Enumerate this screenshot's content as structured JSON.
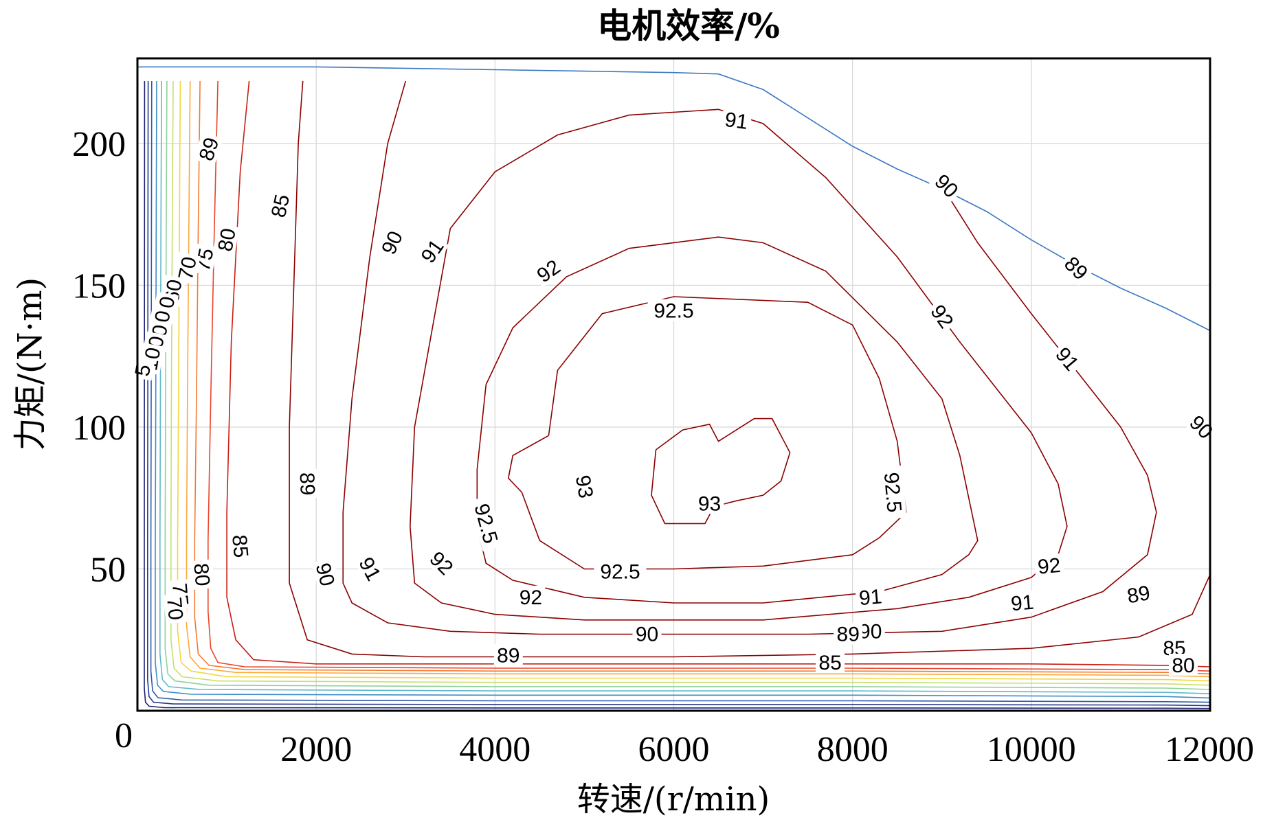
{
  "chart_data": {
    "type": "contour",
    "title": "电机效率/%",
    "xlabel": "转速/(r/min)",
    "ylabel": "力矩/(N·m)",
    "xlim": [
      0,
      12000
    ],
    "ylim": [
      0,
      230
    ],
    "x_ticks": [
      0,
      2000,
      4000,
      6000,
      8000,
      10000,
      12000
    ],
    "x_tick_labels": [
      "0",
      "2000",
      "4000",
      "6000",
      "8000",
      "10000",
      "12000"
    ],
    "y_ticks": [
      50,
      100,
      150,
      200
    ],
    "y_tick_labels": [
      "50",
      "100",
      "150",
      "200"
    ],
    "grid": true,
    "legend": "none",
    "colors": {
      "peak_torque_curve": "#3a78c2",
      "high_efficiency": "#8b0000",
      "level_85": "#c81e14",
      "level_80": "#e8442a",
      "level_75": "#f47a30",
      "level_70": "#fca83a",
      "level_60": "#f2d640",
      "level_50": "#c5e06a",
      "level_40": "#8fd09a",
      "level_30": "#5fb8c8",
      "level_20": "#3d8cc8",
      "level_10": "#2f5aa8",
      "level_5": "#243a8a",
      "level_0": "#1a2070"
    },
    "peak_torque_curve": {
      "x": [
        0,
        2000,
        4000,
        5000,
        6000,
        6500,
        7000,
        7500,
        8000,
        8500,
        9000,
        9500,
        10000,
        10500,
        11000,
        11500,
        12000
      ],
      "y": [
        227,
        227,
        226,
        225.5,
        225,
        224.5,
        219,
        209,
        199,
        191,
        184,
        176,
        166,
        157,
        149,
        142,
        134
      ]
    },
    "contour_levels": [
      {
        "level": "93",
        "x": [
          5800,
          6100,
          6400,
          6500,
          6900,
          7100,
          7300,
          7200,
          7000,
          6700,
          6450,
          6350,
          6150,
          5900,
          5750,
          5800
        ],
        "y": [
          92,
          99,
          101,
          95,
          103,
          103,
          91,
          81,
          76,
          74,
          72,
          66,
          66,
          66,
          76,
          92
        ]
      },
      {
        "level": "92.5",
        "x": [
          4600,
          4700,
          5200,
          6000,
          6750,
          7500,
          8000,
          8300,
          8500,
          8600,
          8300,
          8000,
          7000,
          6000,
          5000,
          4500,
          4300,
          4150,
          4200,
          4600
        ],
        "y": [
          97,
          120,
          140,
          146,
          145,
          144,
          136,
          117,
          95,
          70,
          61,
          55,
          51,
          50,
          50,
          60,
          77,
          82,
          90,
          97
        ]
      },
      {
        "level": "92",
        "x": [
          3900,
          4200,
          4800,
          5500,
          6500,
          7000,
          7700,
          8500,
          9000,
          9200,
          9400,
          9300,
          9000,
          8300,
          7000,
          6000,
          5000,
          4200,
          3900,
          3800,
          3800,
          3900
        ],
        "y": [
          115,
          135,
          153,
          163,
          167,
          165,
          155,
          130,
          110,
          90,
          60,
          55,
          48,
          42,
          38,
          38,
          40,
          46,
          52,
          65,
          85,
          115
        ]
      },
      {
        "level": "91",
        "x": [
          3500,
          4000,
          4700,
          5500,
          6500,
          7000,
          7700,
          8500,
          9200,
          10000,
          10300,
          10400,
          10300,
          10000,
          9300,
          8500,
          7000,
          6000,
          5000,
          4000,
          3400,
          3100,
          3050,
          3100,
          3500
        ],
        "y": [
          170,
          190,
          203,
          210,
          212,
          207,
          188,
          160,
          130,
          98,
          80,
          65,
          55,
          47,
          40,
          36,
          32,
          32,
          32,
          34,
          38,
          45,
          65,
          100,
          170
        ]
      },
      {
        "level": "90",
        "x": [
          3000,
          2800,
          2600,
          2400,
          2300,
          2300,
          2400,
          2800,
          3500,
          4500,
          6000,
          7500,
          9000,
          10000,
          10800,
          11300,
          11400,
          11300,
          11000,
          10500,
          10000,
          9400,
          9000
        ],
        "y": [
          222,
          200,
          160,
          110,
          70,
          45,
          38,
          31,
          28,
          27,
          27,
          27,
          28,
          33,
          42,
          55,
          70,
          83,
          100,
          120,
          140,
          165,
          185
        ]
      },
      {
        "level": "89",
        "x": [
          1850,
          1800,
          1750,
          1700,
          1700,
          1900,
          2400,
          3200,
          4500,
          6000,
          8000,
          10000,
          11200,
          11800,
          12000
        ],
        "y": [
          222,
          200,
          150,
          100,
          45,
          25,
          20,
          19,
          19,
          19,
          20,
          22,
          26,
          34,
          48
        ]
      },
      {
        "level": "85",
        "x": [
          1250,
          1150,
          1050,
          1000,
          1000,
          1100,
          1300,
          2000,
          4000,
          6000,
          8000,
          10000,
          11500,
          12000
        ],
        "y": [
          222,
          190,
          130,
          70,
          40,
          25,
          18,
          16.5,
          16.5,
          16.5,
          16.5,
          16.5,
          16,
          15.5
        ]
      },
      {
        "level": "80",
        "x": [
          900,
          860,
          820,
          790,
          790,
          820,
          900,
          1200,
          4000,
          8000,
          11500,
          12000
        ],
        "y": [
          222,
          170,
          110,
          60,
          35,
          22,
          17,
          15.5,
          15,
          15,
          14.5,
          14
        ]
      },
      {
        "level": "75",
        "x": [
          700,
          680,
          660,
          640,
          640,
          680,
          800,
          1200,
          4000,
          8000,
          11500,
          12000
        ],
        "y": [
          222,
          170,
          110,
          60,
          33,
          20,
          16,
          14.5,
          14,
          14,
          13.5,
          13
        ]
      },
      {
        "level": "70",
        "x": [
          590,
          575,
          560,
          550,
          550,
          590,
          700,
          1100,
          4000,
          8000,
          11500,
          12000
        ],
        "y": [
          222,
          170,
          110,
          60,
          30,
          19,
          15,
          13.5,
          13,
          13,
          12.5,
          12
        ]
      },
      {
        "level": "60",
        "x": [
          480,
          470,
          460,
          450,
          450,
          490,
          600,
          1000,
          4000,
          8000,
          11500,
          12000
        ],
        "y": [
          222,
          170,
          110,
          60,
          28,
          17,
          14,
          12,
          11.5,
          11.5,
          11,
          10.5
        ]
      },
      {
        "level": "50",
        "x": [
          400,
          390,
          380,
          375,
          375,
          410,
          500,
          900,
          4000,
          8000,
          11500,
          12000
        ],
        "y": [
          222,
          170,
          110,
          60,
          25,
          15,
          12,
          10.5,
          10,
          10,
          9.5,
          9
        ]
      },
      {
        "level": "40",
        "x": [
          330,
          322,
          315,
          310,
          310,
          340,
          420,
          800,
          4000,
          8000,
          11500,
          12000
        ],
        "y": [
          222,
          170,
          110,
          60,
          22,
          13,
          10.5,
          9,
          8.5,
          8.5,
          8,
          7.5
        ]
      },
      {
        "level": "30",
        "x": [
          270,
          263,
          257,
          252,
          252,
          280,
          350,
          700,
          4000,
          8000,
          11500,
          12000
        ],
        "y": [
          222,
          170,
          110,
          60,
          20,
          11,
          8.5,
          7.5,
          7,
          7,
          6.5,
          6
        ]
      },
      {
        "level": "20",
        "x": [
          215,
          210,
          205,
          200,
          200,
          225,
          290,
          600,
          4000,
          8000,
          11500,
          12000
        ],
        "y": [
          222,
          170,
          110,
          60,
          17,
          9,
          6.8,
          5.8,
          5.5,
          5.5,
          5,
          4.5
        ]
      },
      {
        "level": "10",
        "x": [
          160,
          157,
          154,
          151,
          151,
          170,
          230,
          500,
          4000,
          8000,
          11500,
          12000
        ],
        "y": [
          222,
          170,
          110,
          60,
          14,
          7,
          4.6,
          3.8,
          3.5,
          3.5,
          3.2,
          3
        ]
      },
      {
        "level": "5",
        "x": [
          120,
          118,
          116,
          114,
          114,
          130,
          180,
          400,
          4000,
          8000,
          11500,
          12000
        ],
        "y": [
          222,
          170,
          110,
          60,
          11,
          5,
          3,
          2.4,
          2.2,
          2.2,
          2,
          1.8
        ]
      },
      {
        "level": "0",
        "x": [
          80,
          79,
          78,
          77,
          77,
          90,
          130,
          300,
          4000,
          8000,
          11500,
          12000
        ],
        "y": [
          222,
          170,
          110,
          60,
          8,
          3,
          1.6,
          1.1,
          1,
          1,
          0.9,
          0.8
        ]
      }
    ],
    "contour_labels": [
      {
        "text": "91",
        "x": 6700,
        "y": 208,
        "angle": 8
      },
      {
        "text": "89",
        "x": 800,
        "y": 198,
        "angle": -72
      },
      {
        "text": "90",
        "x": 9050,
        "y": 185,
        "angle": 45
      },
      {
        "text": "85",
        "x": 1600,
        "y": 178,
        "angle": -78
      },
      {
        "text": "80",
        "x": 1000,
        "y": 166,
        "angle": -80
      },
      {
        "text": "90",
        "x": 2850,
        "y": 165,
        "angle": -66
      },
      {
        "text": "91",
        "x": 3300,
        "y": 162,
        "angle": -55
      },
      {
        "text": "75",
        "x": 750,
        "y": 159,
        "angle": -78
      },
      {
        "text": "70",
        "x": 560,
        "y": 156,
        "angle": -78
      },
      {
        "text": "89",
        "x": 10500,
        "y": 156,
        "angle": 45
      },
      {
        "text": "92",
        "x": 4600,
        "y": 155,
        "angle": -35
      },
      {
        "text": "60",
        "x": 400,
        "y": 148,
        "angle": -80
      },
      {
        "text": "50",
        "x": 320,
        "y": 142,
        "angle": -80
      },
      {
        "text": "40",
        "x": 270,
        "y": 137,
        "angle": -80
      },
      {
        "text": "30",
        "x": 240,
        "y": 132,
        "angle": -80
      },
      {
        "text": "20",
        "x": 200,
        "y": 128,
        "angle": -80
      },
      {
        "text": "10",
        "x": 160,
        "y": 124,
        "angle": -80
      },
      {
        "text": "5",
        "x": 60,
        "y": 120,
        "angle": -80
      },
      {
        "text": "92.5",
        "x": 6000,
        "y": 141,
        "angle": 0
      },
      {
        "text": "92",
        "x": 9000,
        "y": 139,
        "angle": 55
      },
      {
        "text": "91",
        "x": 10400,
        "y": 124,
        "angle": 50
      },
      {
        "text": "90",
        "x": 11900,
        "y": 100,
        "angle": 45
      },
      {
        "text": "93",
        "x": 5000,
        "y": 79,
        "angle": 80
      },
      {
        "text": "93",
        "x": 6400,
        "y": 73,
        "angle": 0
      },
      {
        "text": "92.5",
        "x": 8450,
        "y": 77,
        "angle": 85
      },
      {
        "text": "92.5",
        "x": 3900,
        "y": 66,
        "angle": 75
      },
      {
        "text": "89",
        "x": 1900,
        "y": 80,
        "angle": 88
      },
      {
        "text": "85",
        "x": 1150,
        "y": 58,
        "angle": 85
      },
      {
        "text": "80",
        "x": 720,
        "y": 48,
        "angle": 85
      },
      {
        "text": "75",
        "x": 480,
        "y": 41,
        "angle": 85
      },
      {
        "text": "70",
        "x": 420,
        "y": 36,
        "angle": 85
      },
      {
        "text": "90",
        "x": 2100,
        "y": 48,
        "angle": 75
      },
      {
        "text": "91",
        "x": 2600,
        "y": 50,
        "angle": 62
      },
      {
        "text": "92",
        "x": 3400,
        "y": 52,
        "angle": 45
      },
      {
        "text": "92.5",
        "x": 5400,
        "y": 49,
        "angle": 0
      },
      {
        "text": "92",
        "x": 10200,
        "y": 51,
        "angle": -5
      },
      {
        "text": "92",
        "x": 4400,
        "y": 40,
        "angle": 0
      },
      {
        "text": "91",
        "x": 8200,
        "y": 40,
        "angle": -5
      },
      {
        "text": "91",
        "x": 9900,
        "y": 38,
        "angle": -5
      },
      {
        "text": "90",
        "x": 5700,
        "y": 27,
        "angle": 0
      },
      {
        "text": "90",
        "x": 8200,
        "y": 28,
        "angle": 0
      },
      {
        "text": "89",
        "x": 7950,
        "y": 27,
        "angle": 0
      },
      {
        "text": "89",
        "x": 11200,
        "y": 41,
        "angle": -10
      },
      {
        "text": "89",
        "x": 4150,
        "y": 19.5,
        "angle": 0
      },
      {
        "text": "85",
        "x": 7750,
        "y": 17,
        "angle": 0
      },
      {
        "text": "85",
        "x": 11600,
        "y": 22,
        "angle": 0
      },
      {
        "text": "80",
        "x": 11700,
        "y": 16,
        "angle": 0
      }
    ]
  }
}
